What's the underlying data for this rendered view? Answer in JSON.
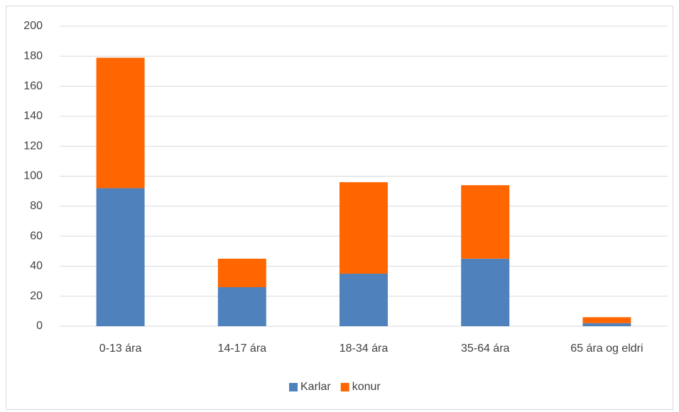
{
  "chart_data": {
    "type": "bar",
    "stacked": true,
    "categories": [
      "0-13 ára",
      "14-17 ára",
      "18-34 ára",
      "35-64 ára",
      "65 ára og eldri"
    ],
    "series": [
      {
        "name": "Karlar",
        "color": "#4f81bd",
        "values": [
          92,
          26,
          35,
          45,
          2
        ]
      },
      {
        "name": "konur",
        "color": "#ff6600",
        "values": [
          87,
          19,
          61,
          49,
          4
        ]
      }
    ],
    "ylim": [
      0,
      200
    ],
    "yticks": [
      0,
      20,
      40,
      60,
      80,
      100,
      120,
      140,
      160,
      180,
      200
    ],
    "grid": true,
    "legend": "bottom"
  }
}
